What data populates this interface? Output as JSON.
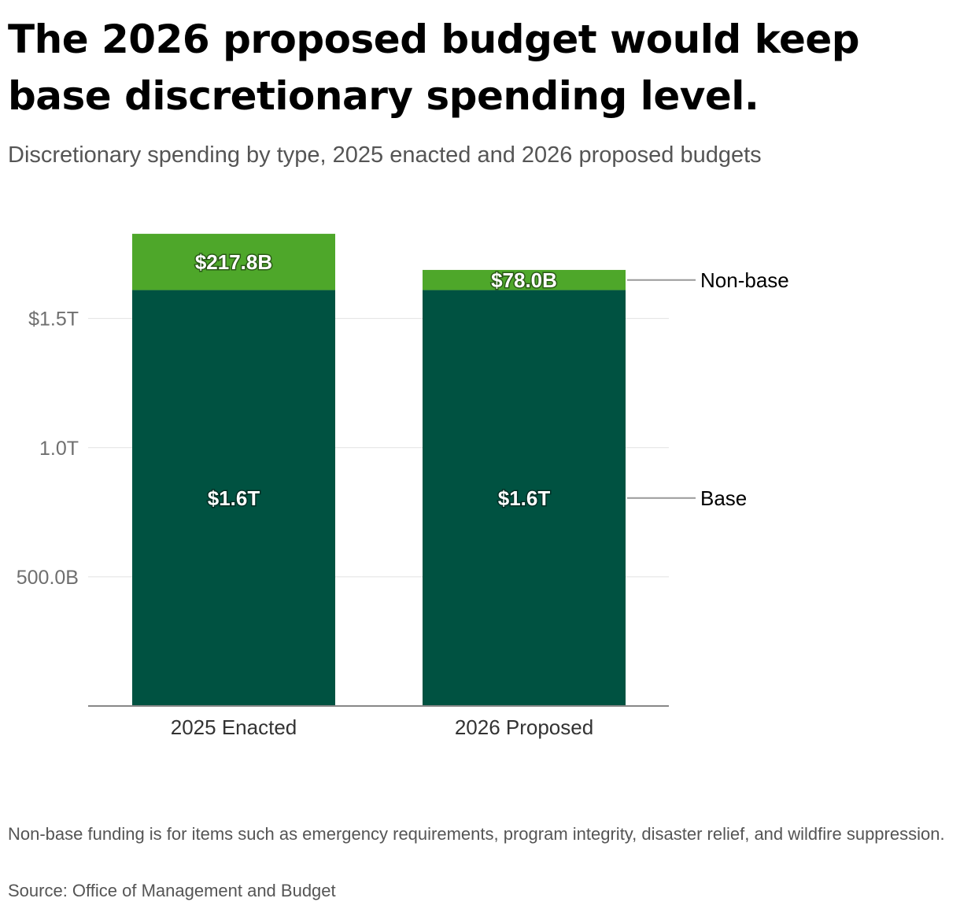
{
  "title": "The 2026 proposed budget would keep base discretionary spending level.",
  "subtitle": "Discretionary spending by type, 2025 enacted and 2026 proposed budgets",
  "note": "Non-base funding is for items such as emergency requirements, program integrity, disaster relief, and wildfire suppression.",
  "source": "Source: Office of Management and Budget",
  "colors": {
    "base": "#005241",
    "non_base": "#4ea72a",
    "grid": "#e2e2e2",
    "axis": "#888888",
    "leader": "#999999"
  },
  "chart_data": {
    "type": "bar",
    "stacked": true,
    "categories": [
      "2025 Enacted",
      "2026 Proposed"
    ],
    "series": [
      {
        "name": "Base",
        "key": "base",
        "values": [
          1610,
          1610
        ],
        "labels": [
          "$1.6T",
          "$1.6T"
        ]
      },
      {
        "name": "Non-base",
        "key": "non_base",
        "values": [
          217.8,
          78.0
        ],
        "labels": [
          "$217.8B",
          "$78.0B"
        ]
      }
    ],
    "y_ticks": [
      {
        "value": 500,
        "label": "500.0B"
      },
      {
        "value": 1000,
        "label": "1.0T"
      },
      {
        "value": 1500,
        "label": "$1.5T"
      }
    ],
    "ylim": [
      0,
      1828
    ],
    "grid": true,
    "legend": "direct labels, right of bars"
  }
}
